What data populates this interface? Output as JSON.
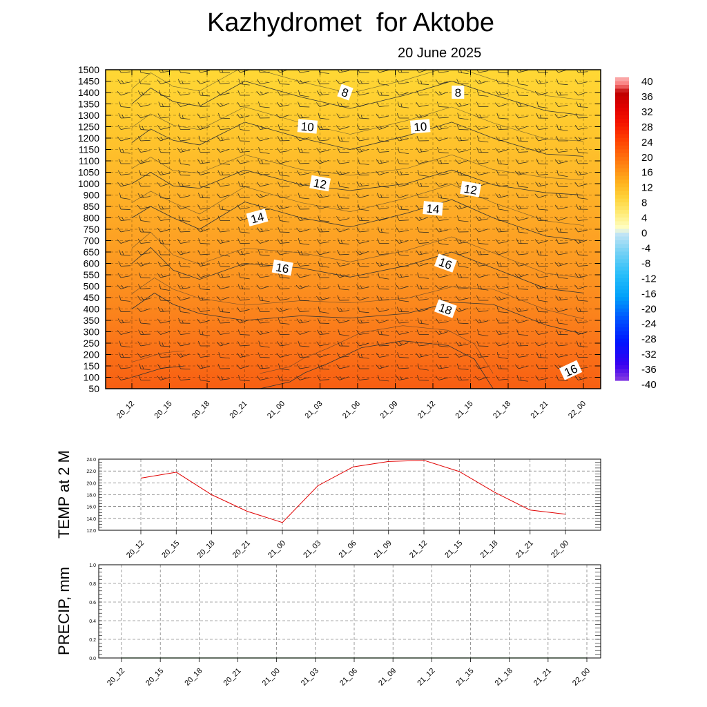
{
  "title": "Kazhydromet  for Aktobe",
  "subtitle": "20 June 2025",
  "time_labels": [
    "20_12",
    "20_15",
    "20_18",
    "20_21",
    "21_00",
    "21_03",
    "21_06",
    "21_09",
    "21_12",
    "21_15",
    "21_18",
    "21_21",
    "22_00"
  ],
  "chart_data": [
    {
      "type": "heatmap",
      "name": "vertical-cross-section",
      "title": "Kazhydromet  for Aktobe",
      "subtitle": "20 June 2025",
      "x": [
        "20_12",
        "20_15",
        "20_18",
        "20_21",
        "21_00",
        "21_03",
        "21_06",
        "21_09",
        "21_12",
        "21_15",
        "21_18",
        "21_21",
        "22_00"
      ],
      "y_levels": [
        50,
        100,
        150,
        200,
        250,
        300,
        350,
        400,
        450,
        500,
        550,
        600,
        650,
        700,
        750,
        800,
        850,
        900,
        1000,
        1050,
        1100,
        1150,
        1200,
        1250,
        1300,
        1350,
        1400,
        1450,
        1500
      ],
      "colorbar": {
        "labels": [
          "40",
          "36",
          "32",
          "28",
          "24",
          "20",
          "16",
          "12",
          "8",
          "4",
          "0",
          "-4",
          "-8",
          "-12",
          "-16",
          "-20",
          "-24",
          "-28",
          "-32",
          "-36",
          "-40"
        ],
        "values": [
          40,
          36,
          32,
          28,
          24,
          20,
          16,
          12,
          8,
          4,
          0,
          -4,
          -8,
          -12,
          -16,
          -20,
          -24,
          -28,
          -32,
          -36,
          -40
        ]
      },
      "contour_labels": [
        {
          "text": "8",
          "x": "21_05",
          "y": 1400
        },
        {
          "text": "8",
          "x": "21_14",
          "y": 1400
        },
        {
          "text": "10",
          "x": "21_02",
          "y": 1250
        },
        {
          "text": "10",
          "x": "21_11",
          "y": 1250
        },
        {
          "text": "12",
          "x": "21_03",
          "y": 1000
        },
        {
          "text": "12",
          "x": "21_15",
          "y": 950
        },
        {
          "text": "14",
          "x": "20_22",
          "y": 800
        },
        {
          "text": "14",
          "x": "21_12",
          "y": 840
        },
        {
          "text": "16",
          "x": "21_00",
          "y": 580
        },
        {
          "text": "16",
          "x": "21_13",
          "y": 600
        },
        {
          "text": "18",
          "x": "21_13",
          "y": 400
        },
        {
          "text": "16",
          "x": "21_23",
          "y": 130
        }
      ],
      "contour_lines": [
        {
          "value": 20,
          "x": [
            3.4,
            4.2,
            4.6,
            5.2,
            6.1,
            7.2,
            8.4,
            9.1,
            9.6
          ],
          "y": [
            50,
            80,
            120,
            160,
            230,
            260,
            240,
            180,
            50
          ]
        },
        {
          "value": 20,
          "x": [
            0,
            0.8,
            1.4
          ],
          "y": [
            100,
            140,
            150
          ]
        },
        {
          "value": 18,
          "x": [
            0,
            0.6,
            1.1,
            1.8,
            3.0,
            4.5,
            5.8,
            7.3,
            8.5,
            9.6,
            11,
            12
          ],
          "y": [
            400,
            470,
            420,
            380,
            350,
            370,
            360,
            380,
            430,
            420,
            330,
            290
          ]
        },
        {
          "value": 16,
          "x": [
            0,
            0.5,
            1.1,
            1.8,
            3.0,
            4.5,
            5.8,
            7.3,
            8.5,
            9.6,
            11,
            12
          ],
          "y": [
            600,
            670,
            570,
            530,
            600,
            580,
            540,
            590,
            650,
            580,
            490,
            470
          ]
        },
        {
          "value": 14,
          "x": [
            0,
            0.5,
            1.1,
            1.8,
            3.0,
            4.5,
            5.8,
            7.3,
            8.5,
            9.6,
            11,
            12
          ],
          "y": [
            800,
            850,
            800,
            750,
            870,
            800,
            760,
            820,
            880,
            800,
            720,
            700
          ]
        },
        {
          "value": 12,
          "x": [
            0,
            0.5,
            1.1,
            1.8,
            3.0,
            4.5,
            5.8,
            7.3,
            8.5,
            9.6,
            11,
            12
          ],
          "y": [
            1000,
            1050,
            980,
            960,
            1060,
            990,
            940,
            1000,
            1060,
            990,
            920,
            900
          ]
        },
        {
          "value": 10,
          "x": [
            0,
            0.5,
            1.1,
            1.8,
            3.0,
            4.5,
            5.8,
            7.3,
            8.5,
            9.6,
            11,
            12
          ],
          "y": [
            1180,
            1240,
            1190,
            1170,
            1270,
            1200,
            1150,
            1210,
            1270,
            1200,
            1130,
            1120
          ]
        },
        {
          "value": 8,
          "x": [
            0,
            0.5,
            1.1,
            1.8,
            3.0,
            4.5,
            5.8,
            7.3,
            8.5,
            9.6,
            11,
            12
          ],
          "y": [
            1350,
            1420,
            1360,
            1340,
            1450,
            1380,
            1330,
            1390,
            1450,
            1390,
            1320,
            1300
          ]
        }
      ],
      "wind_barbs": true,
      "grid": true
    },
    {
      "type": "line",
      "name": "temp-2m",
      "ylabel": "TEMP at 2 M",
      "ylim": [
        12.0,
        24.0
      ],
      "yticks": [
        "12.0",
        "14.0",
        "16.0",
        "18.0",
        "20.0",
        "22.0",
        "24.0"
      ],
      "categories": [
        "20_12",
        "20_15",
        "20_18",
        "20_21",
        "21_00",
        "21_03",
        "21_06",
        "21_09",
        "21_12",
        "21_15",
        "21_18",
        "21_21",
        "22_00"
      ],
      "values": [
        20.8,
        21.8,
        18.0,
        15.2,
        13.3,
        19.5,
        22.7,
        23.6,
        23.8,
        21.9,
        18.4,
        15.4,
        14.7
      ],
      "line_color": "#e00000",
      "grid": true
    },
    {
      "type": "line",
      "name": "precip",
      "ylabel": "PRECIP, mm",
      "ylim": [
        0.0,
        1.0
      ],
      "yticks": [
        "0.0",
        "0.2",
        "0.4",
        "0.6",
        "0.8",
        "1.0"
      ],
      "categories": [
        "20_12",
        "20_15",
        "20_18",
        "20_21",
        "21_00",
        "21_03",
        "21_06",
        "21_09",
        "21_12",
        "21_15",
        "21_18",
        "21_21",
        "22_00"
      ],
      "values": [
        0,
        0,
        0,
        0,
        0,
        0,
        0,
        0,
        0,
        0,
        0,
        0,
        0
      ],
      "line_color": "#1a7a1a",
      "grid": true
    }
  ]
}
